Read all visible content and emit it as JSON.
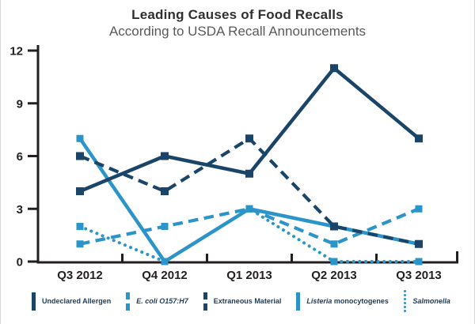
{
  "header": {
    "title": "Leading Causes of Food Recalls",
    "subtitle": "According to USDA Recall Announcements"
  },
  "colors": {
    "navy": "#1a4568",
    "light_blue": "#2b94c8",
    "axis": "#231f20",
    "tick_label": "#231f20",
    "title_text": "#303030",
    "subtitle_text": "#58595b",
    "legend_text": "#1c3c59"
  },
  "chart_data": {
    "type": "line",
    "title": "Leading Causes of Food Recalls",
    "subtitle": "According to USDA Recall Announcements",
    "categories": [
      "Q3 2012",
      "Q4 2012",
      "Q1 2013",
      "Q2 2013",
      "Q3 2013"
    ],
    "ylim": [
      0,
      12
    ],
    "yticks": [
      0,
      3,
      6,
      9,
      12
    ],
    "grid": false,
    "legend_position": "bottom",
    "series": [
      {
        "name": "Undeclared Allergen",
        "values": [
          4,
          6,
          5,
          11,
          7
        ],
        "color": "#1a4568",
        "style": "solid",
        "marker": "square"
      },
      {
        "name": "E. coli O157:H7",
        "values": [
          1,
          2,
          3,
          1,
          3
        ],
        "color": "#2b94c8",
        "style": "dashed",
        "marker": "square"
      },
      {
        "name": "Extraneous Material",
        "values": [
          6,
          4,
          7,
          2,
          1
        ],
        "color": "#1a4568",
        "style": "dashed",
        "marker": "square"
      },
      {
        "name": "Listeria monocytogenes",
        "values": [
          7,
          0,
          3,
          2,
          1
        ],
        "color": "#2b94c8",
        "style": "solid",
        "marker": "square"
      },
      {
        "name": "Salmonella",
        "values": [
          2,
          0,
          3,
          0,
          0
        ],
        "color": "#2b94c8",
        "style": "dotted",
        "marker": "square"
      }
    ]
  },
  "legend": {
    "items": [
      {
        "style": "solid",
        "color": "#1a4568",
        "parts": [
          {
            "text": "Undeclared Allergen",
            "italic": false
          }
        ]
      },
      {
        "style": "dashed",
        "color": "#2b94c8",
        "parts": [
          {
            "text": "E. coli O157:H7",
            "italic": true
          }
        ]
      },
      {
        "style": "dashed",
        "color": "#1a4568",
        "parts": [
          {
            "text": "Extraneous Material",
            "italic": false
          }
        ]
      },
      {
        "style": "solid",
        "color": "#2b94c8",
        "parts": [
          {
            "text": "Listeria",
            "italic": true
          },
          {
            "text": " monocytogenes",
            "italic": false
          }
        ]
      },
      {
        "style": "dotted",
        "color": "#2b94c8",
        "parts": [
          {
            "text": "Salmonella",
            "italic": true
          }
        ]
      }
    ]
  }
}
